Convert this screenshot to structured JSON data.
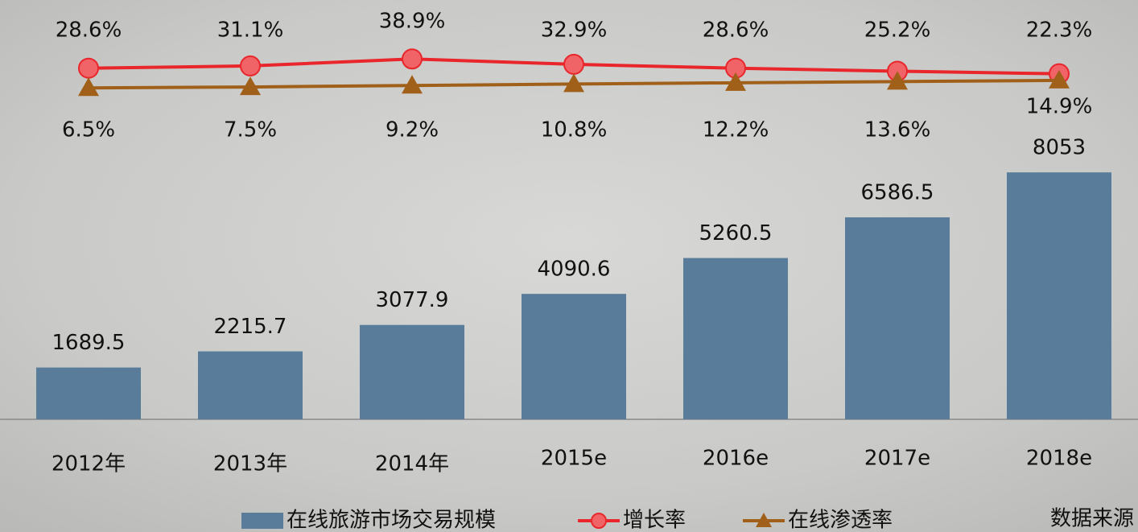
{
  "chart_data": {
    "type": "bar-line",
    "categories": [
      "2012年",
      "2013年",
      "2014年",
      "2015e",
      "2016e",
      "2017e",
      "2018e"
    ],
    "series": [
      {
        "name": "在线旅游市场交易规模",
        "type": "bar",
        "color": "#587c99",
        "values": [
          1689.5,
          2215.7,
          3077.9,
          4090.6,
          5260.5,
          6586.5,
          8053
        ]
      },
      {
        "name": "增长率",
        "type": "line",
        "axis": "y2",
        "color": "#e8262b",
        "marker": "circle",
        "values": [
          28.6,
          31.1,
          38.9,
          32.9,
          28.6,
          25.2,
          22.3
        ],
        "value_labels": [
          "28.6%",
          "31.1%",
          "38.9%",
          "32.9%",
          "28.6%",
          "25.2%",
          "22.3%"
        ]
      },
      {
        "name": "在线渗透率",
        "type": "line",
        "axis": "y2",
        "color": "#a0601a",
        "marker": "triangle",
        "values": [
          6.5,
          7.5,
          9.2,
          10.8,
          12.2,
          13.6,
          14.9
        ],
        "value_labels": [
          "6.5%",
          "7.5%",
          "9.2%",
          "10.8%",
          "12.2%",
          "13.6%",
          "14.9%"
        ]
      }
    ],
    "ylim": [
      0,
      10000
    ],
    "y2lim": [
      -365,
      105
    ],
    "grid": false,
    "source": "数据来源"
  }
}
